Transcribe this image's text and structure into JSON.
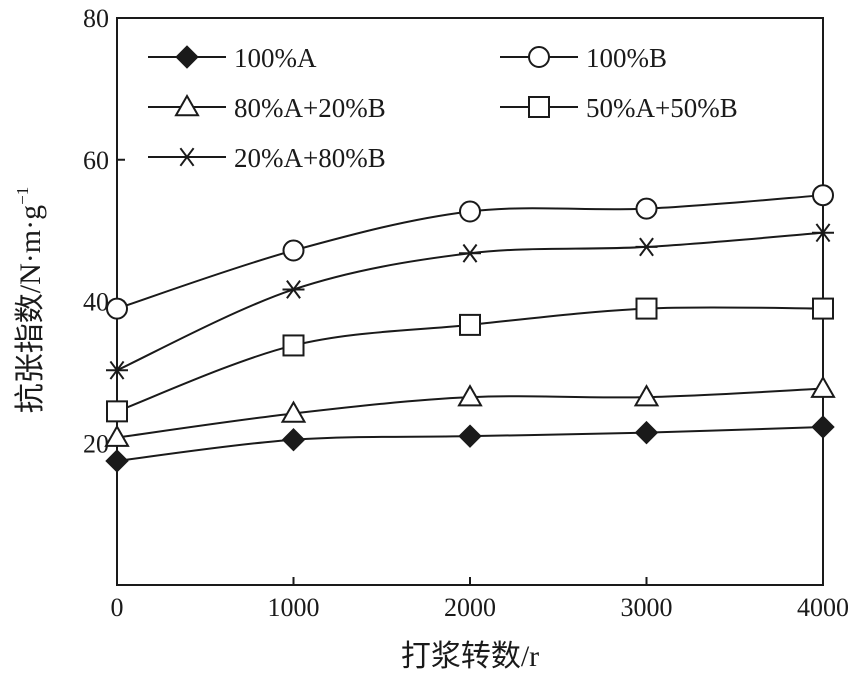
{
  "chart_data": {
    "type": "line",
    "x": [
      0,
      1000,
      2000,
      3000,
      4000
    ],
    "xlabel": "打浆转数/r",
    "ylabel": "抗张指数/N·m·g",
    "ylabel_sup": "−1",
    "xlim": [
      0,
      4000
    ],
    "ylim": [
      0,
      80
    ],
    "xticks": [
      0,
      1000,
      2000,
      3000,
      4000
    ],
    "yticks": [
      20,
      40,
      60,
      80
    ],
    "grid": false,
    "legend_position": "top-left",
    "series": [
      {
        "name": "100%A",
        "marker": "filled-diamond",
        "values": [
          17.5,
          20.5,
          21.0,
          21.5,
          22.3
        ]
      },
      {
        "name": "100%B",
        "marker": "open-circle",
        "values": [
          39.0,
          47.2,
          52.7,
          53.1,
          55.0
        ]
      },
      {
        "name": "80%A+20%B",
        "marker": "open-triangle",
        "values": [
          20.8,
          24.2,
          26.5,
          26.5,
          27.7
        ]
      },
      {
        "name": "50%A+50%B",
        "marker": "open-square",
        "values": [
          24.5,
          33.8,
          36.7,
          39.0,
          39.0
        ]
      },
      {
        "name": "20%A+80%B",
        "marker": "asterisk",
        "values": [
          30.3,
          41.7,
          46.8,
          47.7,
          49.7
        ]
      }
    ]
  }
}
